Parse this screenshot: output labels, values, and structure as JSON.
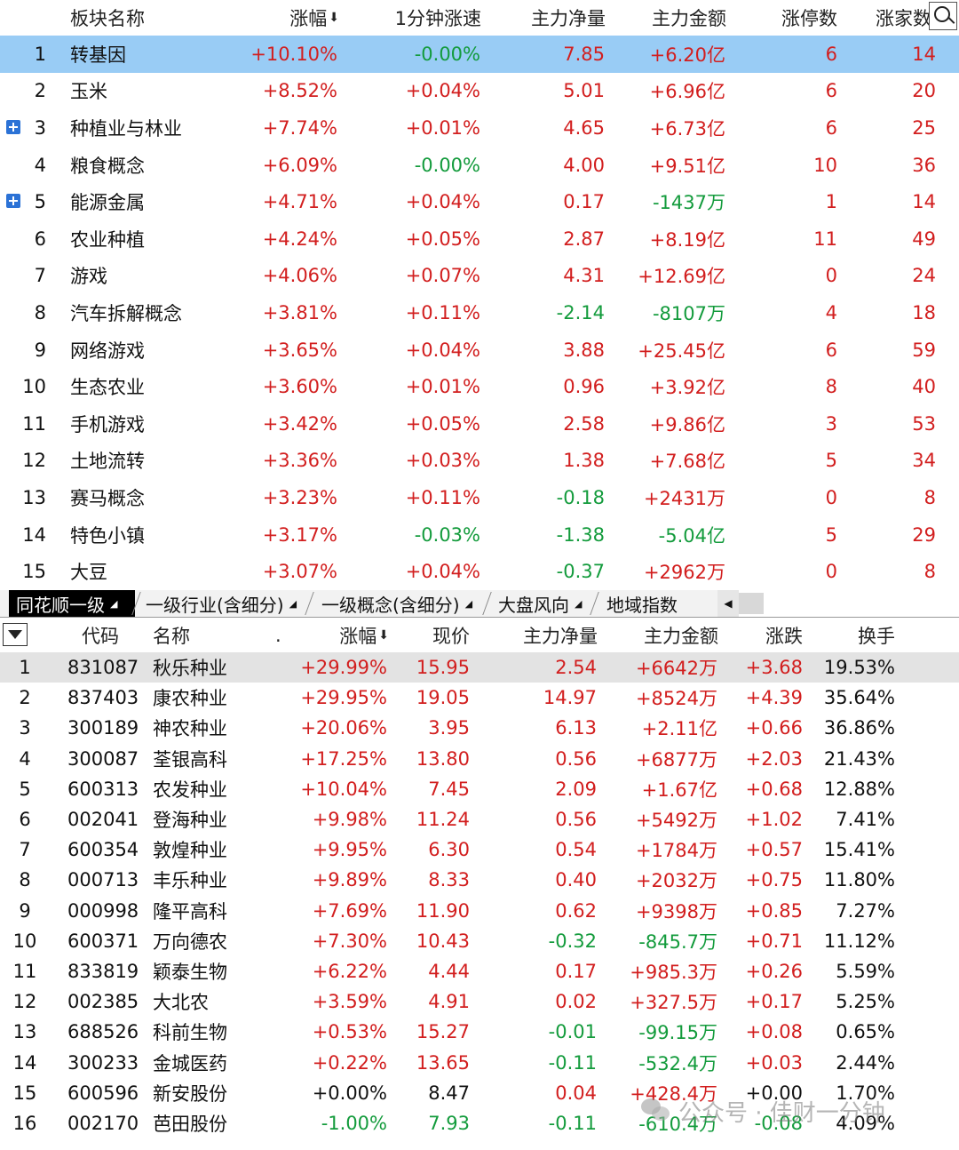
{
  "top_table": {
    "headers": {
      "name": "板块名称",
      "change_pct": "涨幅",
      "speed_1min": "1分钟涨速",
      "main_net": "主力净量",
      "main_amount": "主力金额",
      "limit_up": "涨停数",
      "up_count": "涨家数"
    },
    "sort_indicator": "⬇",
    "rows": [
      {
        "rank": "1",
        "name": "转基因",
        "expandable": false,
        "change_pct": "+10.10%",
        "change_dir": "up",
        "speed_1min": "-0.00%",
        "speed_dir": "down",
        "main_net": "7.85",
        "net_dir": "up",
        "main_amount": "+6.20亿",
        "amount_dir": "up",
        "limit_up": "6",
        "up_count": "14"
      },
      {
        "rank": "2",
        "name": "玉米",
        "expandable": false,
        "change_pct": "+8.52%",
        "change_dir": "up",
        "speed_1min": "+0.04%",
        "speed_dir": "up",
        "main_net": "5.01",
        "net_dir": "up",
        "main_amount": "+6.96亿",
        "amount_dir": "up",
        "limit_up": "6",
        "up_count": "20"
      },
      {
        "rank": "3",
        "name": "种植业与林业",
        "expandable": true,
        "change_pct": "+7.74%",
        "change_dir": "up",
        "speed_1min": "+0.01%",
        "speed_dir": "up",
        "main_net": "4.65",
        "net_dir": "up",
        "main_amount": "+6.73亿",
        "amount_dir": "up",
        "limit_up": "6",
        "up_count": "25"
      },
      {
        "rank": "4",
        "name": "粮食概念",
        "expandable": false,
        "change_pct": "+6.09%",
        "change_dir": "up",
        "speed_1min": "-0.00%",
        "speed_dir": "down",
        "main_net": "4.00",
        "net_dir": "up",
        "main_amount": "+9.51亿",
        "amount_dir": "up",
        "limit_up": "10",
        "up_count": "36"
      },
      {
        "rank": "5",
        "name": "能源金属",
        "expandable": true,
        "change_pct": "+4.71%",
        "change_dir": "up",
        "speed_1min": "+0.04%",
        "speed_dir": "up",
        "main_net": "0.17",
        "net_dir": "up",
        "main_amount": "-1437万",
        "amount_dir": "down",
        "limit_up": "1",
        "up_count": "14"
      },
      {
        "rank": "6",
        "name": "农业种植",
        "expandable": false,
        "change_pct": "+4.24%",
        "change_dir": "up",
        "speed_1min": "+0.05%",
        "speed_dir": "up",
        "main_net": "2.87",
        "net_dir": "up",
        "main_amount": "+8.19亿",
        "amount_dir": "up",
        "limit_up": "11",
        "up_count": "49"
      },
      {
        "rank": "7",
        "name": "游戏",
        "expandable": false,
        "change_pct": "+4.06%",
        "change_dir": "up",
        "speed_1min": "+0.07%",
        "speed_dir": "up",
        "main_net": "4.31",
        "net_dir": "up",
        "main_amount": "+12.69亿",
        "amount_dir": "up",
        "limit_up": "0",
        "up_count": "24"
      },
      {
        "rank": "8",
        "name": "汽车拆解概念",
        "expandable": false,
        "change_pct": "+3.81%",
        "change_dir": "up",
        "speed_1min": "+0.11%",
        "speed_dir": "up",
        "main_net": "-2.14",
        "net_dir": "down",
        "main_amount": "-8107万",
        "amount_dir": "down",
        "limit_up": "4",
        "up_count": "18"
      },
      {
        "rank": "9",
        "name": "网络游戏",
        "expandable": false,
        "change_pct": "+3.65%",
        "change_dir": "up",
        "speed_1min": "+0.04%",
        "speed_dir": "up",
        "main_net": "3.88",
        "net_dir": "up",
        "main_amount": "+25.45亿",
        "amount_dir": "up",
        "limit_up": "6",
        "up_count": "59"
      },
      {
        "rank": "10",
        "name": "生态农业",
        "expandable": false,
        "change_pct": "+3.60%",
        "change_dir": "up",
        "speed_1min": "+0.01%",
        "speed_dir": "up",
        "main_net": "0.96",
        "net_dir": "up",
        "main_amount": "+3.92亿",
        "amount_dir": "up",
        "limit_up": "8",
        "up_count": "40"
      },
      {
        "rank": "11",
        "name": "手机游戏",
        "expandable": false,
        "change_pct": "+3.42%",
        "change_dir": "up",
        "speed_1min": "+0.05%",
        "speed_dir": "up",
        "main_net": "2.58",
        "net_dir": "up",
        "main_amount": "+9.86亿",
        "amount_dir": "up",
        "limit_up": "3",
        "up_count": "53"
      },
      {
        "rank": "12",
        "name": "土地流转",
        "expandable": false,
        "change_pct": "+3.36%",
        "change_dir": "up",
        "speed_1min": "+0.03%",
        "speed_dir": "up",
        "main_net": "1.38",
        "net_dir": "up",
        "main_amount": "+7.68亿",
        "amount_dir": "up",
        "limit_up": "5",
        "up_count": "34"
      },
      {
        "rank": "13",
        "name": "赛马概念",
        "expandable": false,
        "change_pct": "+3.23%",
        "change_dir": "up",
        "speed_1min": "+0.11%",
        "speed_dir": "up",
        "main_net": "-0.18",
        "net_dir": "down",
        "main_amount": "+2431万",
        "amount_dir": "up",
        "limit_up": "0",
        "up_count": "8"
      },
      {
        "rank": "14",
        "name": "特色小镇",
        "expandable": false,
        "change_pct": "+3.17%",
        "change_dir": "up",
        "speed_1min": "-0.03%",
        "speed_dir": "down",
        "main_net": "-1.38",
        "net_dir": "down",
        "main_amount": "-5.04亿",
        "amount_dir": "down",
        "limit_up": "5",
        "up_count": "29"
      },
      {
        "rank": "15",
        "name": "大豆",
        "expandable": false,
        "change_pct": "+3.07%",
        "change_dir": "up",
        "speed_1min": "+0.04%",
        "speed_dir": "up",
        "main_net": "-0.37",
        "net_dir": "down",
        "main_amount": "+2962万",
        "amount_dir": "up",
        "limit_up": "0",
        "up_count": "8"
      }
    ]
  },
  "tabs": [
    {
      "label": "同花顺一级",
      "active": true,
      "has_caret": true
    },
    {
      "label": "一级行业(含细分)",
      "active": false,
      "has_caret": true
    },
    {
      "label": "一级概念(含细分)",
      "active": false,
      "has_caret": true
    },
    {
      "label": "大盘风向",
      "active": false,
      "has_caret": true
    },
    {
      "label": "地域指数",
      "active": false,
      "has_caret": false
    }
  ],
  "scroll_left_glyph": "◀",
  "bottom_table": {
    "headers": {
      "code": "代码",
      "name": "名称",
      "dot": ".",
      "change_pct": "涨幅",
      "price": "现价",
      "main_net": "主力净量",
      "main_amount": "主力金额",
      "change": "涨跌",
      "turnover": "换手"
    },
    "sort_indicator": "⬇",
    "rows": [
      {
        "rank": "1",
        "code": "831087",
        "name": "秋乐种业",
        "change_pct": "+29.99%",
        "dir": "up",
        "price": "15.95",
        "main_net": "2.54",
        "net_dir": "up",
        "main_amount": "+6642万",
        "amount_dir": "up",
        "change": "+3.68",
        "turnover": "19.53%"
      },
      {
        "rank": "2",
        "code": "837403",
        "name": "康农种业",
        "change_pct": "+29.95%",
        "dir": "up",
        "price": "19.05",
        "main_net": "14.97",
        "net_dir": "up",
        "main_amount": "+8524万",
        "amount_dir": "up",
        "change": "+4.39",
        "turnover": "35.64%"
      },
      {
        "rank": "3",
        "code": "300189",
        "name": "神农种业",
        "change_pct": "+20.06%",
        "dir": "up",
        "price": "3.95",
        "main_net": "6.13",
        "net_dir": "up",
        "main_amount": "+2.11亿",
        "amount_dir": "up",
        "change": "+0.66",
        "turnover": "36.86%"
      },
      {
        "rank": "4",
        "code": "300087",
        "name": "荃银高科",
        "change_pct": "+17.25%",
        "dir": "up",
        "price": "13.80",
        "main_net": "0.56",
        "net_dir": "up",
        "main_amount": "+6877万",
        "amount_dir": "up",
        "change": "+2.03",
        "turnover": "21.43%"
      },
      {
        "rank": "5",
        "code": "600313",
        "name": "农发种业",
        "change_pct": "+10.04%",
        "dir": "up",
        "price": "7.45",
        "main_net": "2.09",
        "net_dir": "up",
        "main_amount": "+1.67亿",
        "amount_dir": "up",
        "change": "+0.68",
        "turnover": "12.88%"
      },
      {
        "rank": "6",
        "code": "002041",
        "name": "登海种业",
        "change_pct": "+9.98%",
        "dir": "up",
        "price": "11.24",
        "main_net": "0.56",
        "net_dir": "up",
        "main_amount": "+5492万",
        "amount_dir": "up",
        "change": "+1.02",
        "turnover": "7.41%"
      },
      {
        "rank": "7",
        "code": "600354",
        "name": "敦煌种业",
        "change_pct": "+9.95%",
        "dir": "up",
        "price": "6.30",
        "main_net": "0.54",
        "net_dir": "up",
        "main_amount": "+1784万",
        "amount_dir": "up",
        "change": "+0.57",
        "turnover": "15.41%"
      },
      {
        "rank": "8",
        "code": "000713",
        "name": "丰乐种业",
        "change_pct": "+9.89%",
        "dir": "up",
        "price": "8.33",
        "main_net": "0.40",
        "net_dir": "up",
        "main_amount": "+2032万",
        "amount_dir": "up",
        "change": "+0.75",
        "turnover": "11.80%"
      },
      {
        "rank": "9",
        "code": "000998",
        "name": "隆平高科",
        "change_pct": "+7.69%",
        "dir": "up",
        "price": "11.90",
        "main_net": "0.62",
        "net_dir": "up",
        "main_amount": "+9398万",
        "amount_dir": "up",
        "change": "+0.85",
        "turnover": "7.27%"
      },
      {
        "rank": "10",
        "code": "600371",
        "name": "万向德农",
        "change_pct": "+7.30%",
        "dir": "up",
        "price": "10.43",
        "main_net": "-0.32",
        "net_dir": "down",
        "main_amount": "-845.7万",
        "amount_dir": "down",
        "change": "+0.71",
        "turnover": "11.12%"
      },
      {
        "rank": "11",
        "code": "833819",
        "name": "颖泰生物",
        "change_pct": "+6.22%",
        "dir": "up",
        "price": "4.44",
        "main_net": "0.17",
        "net_dir": "up",
        "main_amount": "+985.3万",
        "amount_dir": "up",
        "change": "+0.26",
        "turnover": "5.59%"
      },
      {
        "rank": "12",
        "code": "002385",
        "name": "大北农",
        "change_pct": "+3.59%",
        "dir": "up",
        "price": "4.91",
        "main_net": "0.02",
        "net_dir": "up",
        "main_amount": "+327.5万",
        "amount_dir": "up",
        "change": "+0.17",
        "turnover": "5.25%"
      },
      {
        "rank": "13",
        "code": "688526",
        "name": "科前生物",
        "change_pct": "+0.53%",
        "dir": "up",
        "price": "15.27",
        "main_net": "-0.01",
        "net_dir": "down",
        "main_amount": "-99.15万",
        "amount_dir": "down",
        "change": "+0.08",
        "turnover": "0.65%"
      },
      {
        "rank": "14",
        "code": "300233",
        "name": "金城医药",
        "change_pct": "+0.22%",
        "dir": "up",
        "price": "13.65",
        "main_net": "-0.11",
        "net_dir": "down",
        "main_amount": "-532.4万",
        "amount_dir": "down",
        "change": "+0.03",
        "turnover": "2.44%"
      },
      {
        "rank": "15",
        "code": "600596",
        "name": "新安股份",
        "change_pct": "+0.00%",
        "dir": "flat",
        "price": "8.47",
        "main_net": "0.04",
        "net_dir": "up",
        "main_amount": "+428.4万",
        "amount_dir": "up",
        "change": "+0.00",
        "turnover": "1.70%"
      },
      {
        "rank": "16",
        "code": "002170",
        "name": "芭田股份",
        "change_pct": "-1.00%",
        "dir": "down",
        "price": "7.93",
        "main_net": "-0.11",
        "net_dir": "down",
        "main_amount": "-610.4万",
        "amount_dir": "down",
        "change": "-0.08",
        "turnover": "4.09%"
      }
    ]
  },
  "watermark": {
    "text": "公众号 · 佳财一分钟",
    "icon": "wechat-icon"
  },
  "colors": {
    "up": "#d21e1e",
    "down": "#139b3c",
    "selected_row": "#99ccf5",
    "selected_row_bottom": "#e3e3e3",
    "tab_active": "#000000"
  }
}
